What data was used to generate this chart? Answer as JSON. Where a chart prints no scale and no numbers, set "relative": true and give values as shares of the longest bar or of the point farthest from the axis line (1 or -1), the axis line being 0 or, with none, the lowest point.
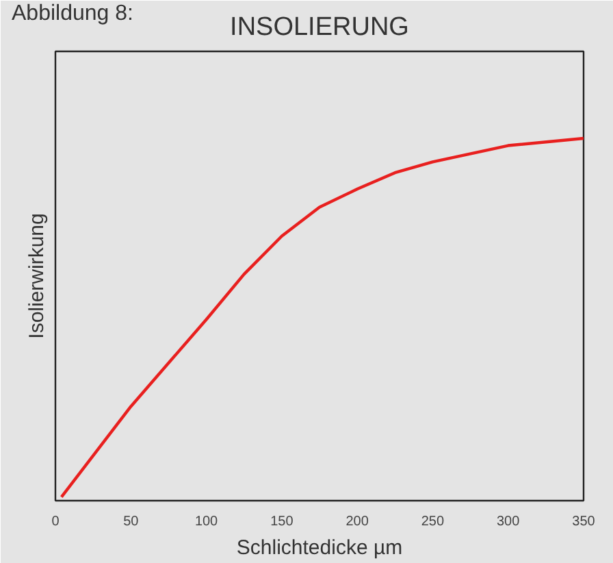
{
  "chart_data": {
    "type": "line",
    "title": "INSOLIERUNG",
    "annotations": [
      "Abbildung 8:"
    ],
    "xlabel": "Schlichtedicke µm",
    "ylabel": "Isolierwirkung",
    "relative": true,
    "xlim": [
      0,
      350
    ],
    "xticks": [
      0,
      50,
      100,
      150,
      200,
      250,
      300,
      350
    ],
    "grid": false,
    "tick_labels": "x",
    "x": [
      4,
      50,
      100,
      125,
      150,
      175,
      200,
      225,
      250,
      300,
      350
    ],
    "series": [
      {
        "color": "#e8201f",
        "values": [
          0.01,
          0.26,
          0.5,
          0.625,
          0.73,
          0.81,
          0.86,
          0.905,
          0.935,
          0.98,
          1
        ]
      }
    ]
  }
}
